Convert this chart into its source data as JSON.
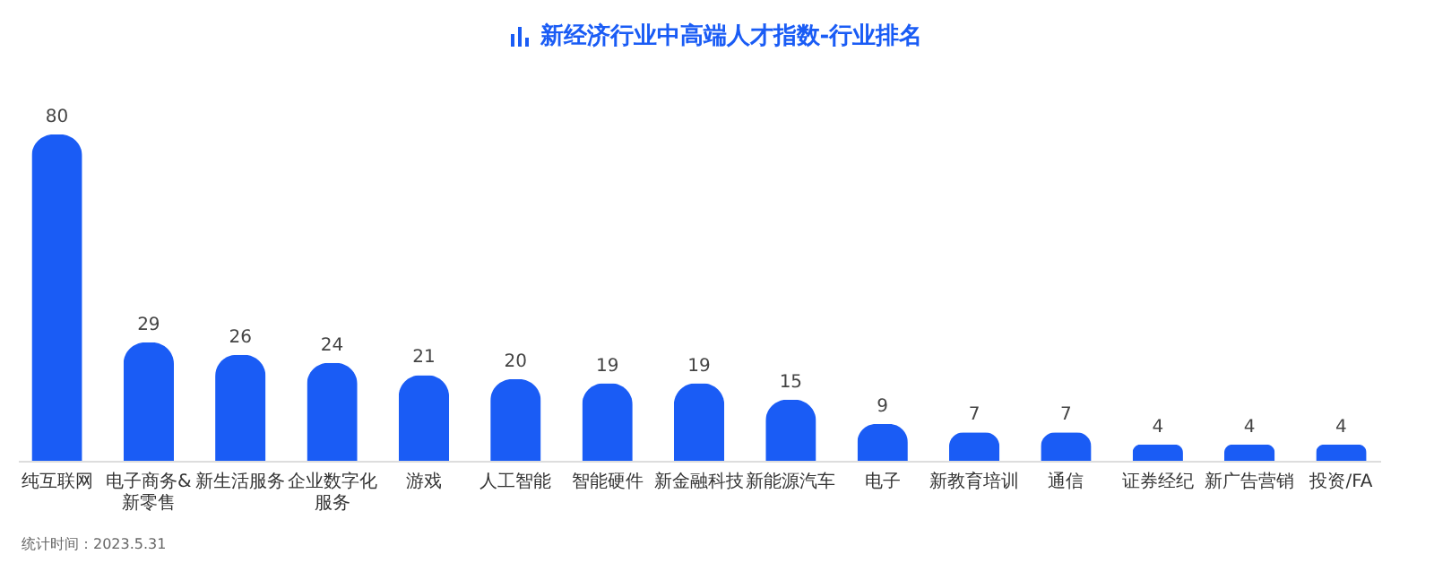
{
  "chart_data": {
    "type": "bar",
    "title": "新经济行业中高端人才指数-行业排名",
    "categories": [
      "纯互联网",
      "电子商务&新零售",
      "新生活服务",
      "企业数字化服务",
      "游戏",
      "人工智能",
      "智能硬件",
      "新金融科技",
      "新能源汽车",
      "电子",
      "新教育培训",
      "通信",
      "证券经纪",
      "新广告营销",
      "投资/FA"
    ],
    "values": [
      80,
      29,
      26,
      24,
      21,
      20,
      19,
      19,
      15,
      9,
      7,
      7,
      4,
      4,
      4
    ],
    "color": "#1a5cf5",
    "data_labels": true,
    "grid": false,
    "annotations": [
      "统计时间：2023.5.31"
    ]
  }
}
